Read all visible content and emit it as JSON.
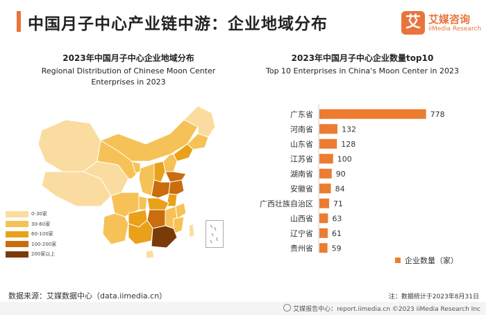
{
  "header": {
    "title": "中国月子中心产业链中游：企业地域分布"
  },
  "logo": {
    "mark": "艾",
    "name_cn": "艾媒咨询",
    "name_en": "iiMedia Research"
  },
  "map": {
    "title_cn": "2023年中国月子中心企业地域分布",
    "title_en_line1": "Regional Distribution of Chinese Moon Center",
    "title_en_line2": "Enterprises  in 2023",
    "legend": [
      {
        "label": "0-30家",
        "color": "#fbdca0"
      },
      {
        "label": "30-60家",
        "color": "#f6c257"
      },
      {
        "label": "60-100家",
        "color": "#e9a11a"
      },
      {
        "label": "100-200家",
        "color": "#c96d0e"
      },
      {
        "label": "200家以上",
        "color": "#7a3a0a"
      }
    ]
  },
  "chart_data": {
    "type": "bar",
    "orientation": "horizontal",
    "title": "2023年中国月子中心企业数量top10",
    "subtitle": "Top 10 Enterprises in China's Moon Center in 2023",
    "categories": [
      "广东省",
      "河南省",
      "山东省",
      "江苏省",
      "湖南省",
      "安徽省",
      "广西壮族自治区",
      "山西省",
      "辽宁省",
      "贵州省"
    ],
    "series": [
      {
        "name": "企业数量（家）",
        "values": [
          778,
          132,
          128,
          100,
          90,
          84,
          71,
          63,
          61,
          59
        ]
      }
    ],
    "xlim": [
      0,
      800
    ],
    "grid": false,
    "legend_position": "bottom-right",
    "bar_color": "#ec7c30"
  },
  "footer": {
    "source": "数据来源：艾媒数据中心（data.iimedia.cn）",
    "note": "注：数据统计于2023年8月31日",
    "copyright": "艾媒报告中心：report.iimedia.cn  ©2023  iiMedia Research  Inc"
  }
}
